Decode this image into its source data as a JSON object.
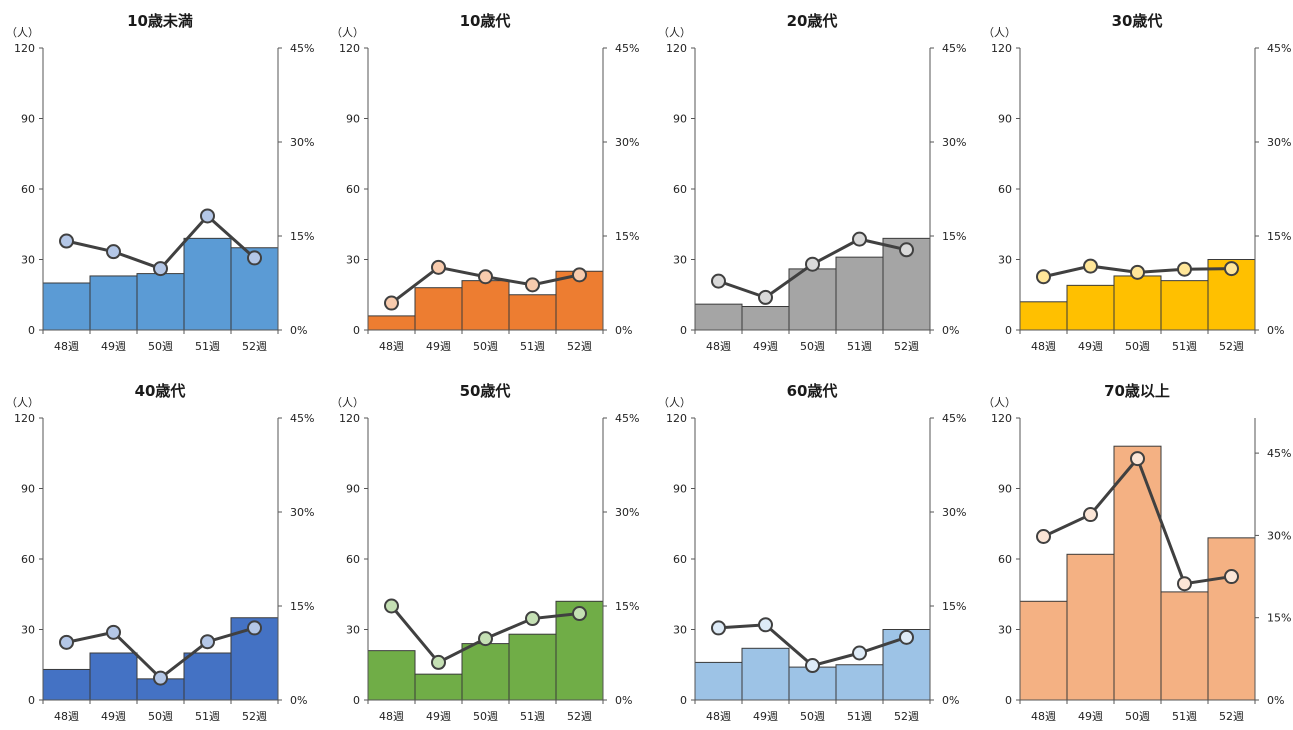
{
  "chart_data": [
    {
      "type": "bar+line",
      "title": "10歳未満",
      "unit_label": "（人）",
      "categories": [
        "48週",
        "49週",
        "50週",
        "51週",
        "52週"
      ],
      "bar_values": [
        20,
        23,
        24,
        39,
        35
      ],
      "line_values_pct": [
        14.2,
        12.5,
        9.8,
        18.2,
        11.5
      ],
      "y_left": [
        0,
        120
      ],
      "y_left_ticks": [
        "0",
        "30",
        "60",
        "90",
        "120"
      ],
      "y_right": [
        0,
        45
      ],
      "y_right_ticks": [
        "0%",
        "15%",
        "30%",
        "45%"
      ],
      "bar_color": "#5b9bd5",
      "marker_color": "#b4c7e7"
    },
    {
      "type": "bar+line",
      "title": "10歳代",
      "unit_label": "（人）",
      "categories": [
        "48週",
        "49週",
        "50週",
        "51週",
        "52週"
      ],
      "bar_values": [
        6,
        18,
        21,
        15,
        25
      ],
      "line_values_pct": [
        4.3,
        10.0,
        8.5,
        7.2,
        8.8
      ],
      "y_left": [
        0,
        120
      ],
      "y_left_ticks": [
        "0",
        "30",
        "60",
        "90",
        "120"
      ],
      "y_right": [
        0,
        45
      ],
      "y_right_ticks": [
        "0%",
        "15%",
        "30%",
        "45%"
      ],
      "bar_color": "#ed7d31",
      "marker_color": "#f8cbad"
    },
    {
      "type": "bar+line",
      "title": "20歳代",
      "unit_label": "（人）",
      "categories": [
        "48週",
        "49週",
        "50週",
        "51週",
        "52週"
      ],
      "bar_values": [
        11,
        10,
        26,
        31,
        39
      ],
      "line_values_pct": [
        7.8,
        5.2,
        10.5,
        14.5,
        12.8
      ],
      "y_left": [
        0,
        120
      ],
      "y_left_ticks": [
        "0",
        "30",
        "60",
        "90",
        "120"
      ],
      "y_right": [
        0,
        45
      ],
      "y_right_ticks": [
        "0%",
        "15%",
        "30%",
        "45%"
      ],
      "bar_color": "#a5a5a5",
      "marker_color": "#d9d9d9"
    },
    {
      "type": "bar+line",
      "title": "30歳代",
      "unit_label": "（人）",
      "categories": [
        "48週",
        "49週",
        "50週",
        "51週",
        "52週"
      ],
      "bar_values": [
        12,
        19,
        23,
        21,
        30
      ],
      "line_values_pct": [
        8.5,
        10.2,
        9.2,
        9.7,
        9.8
      ],
      "y_left": [
        0,
        120
      ],
      "y_left_ticks": [
        "0",
        "30",
        "60",
        "90",
        "120"
      ],
      "y_right": [
        0,
        45
      ],
      "y_right_ticks": [
        "0%",
        "15%",
        "30%",
        "45%"
      ],
      "bar_color": "#ffc000",
      "marker_color": "#ffe699"
    },
    {
      "type": "bar+line",
      "title": "40歳代",
      "unit_label": "（人）",
      "categories": [
        "48週",
        "49週",
        "50週",
        "51週",
        "52週"
      ],
      "bar_values": [
        13,
        20,
        9,
        20,
        35
      ],
      "line_values_pct": [
        9.2,
        10.8,
        3.5,
        9.3,
        11.5
      ],
      "y_left": [
        0,
        120
      ],
      "y_left_ticks": [
        "0",
        "30",
        "60",
        "90",
        "120"
      ],
      "y_right": [
        0,
        45
      ],
      "y_right_ticks": [
        "0%",
        "15%",
        "30%",
        "45%"
      ],
      "bar_color": "#4472c4",
      "marker_color": "#b4c7e7"
    },
    {
      "type": "bar+line",
      "title": "50歳代",
      "unit_label": "（人）",
      "categories": [
        "48週",
        "49週",
        "50週",
        "51週",
        "52週"
      ],
      "bar_values": [
        21,
        11,
        24,
        28,
        42
      ],
      "line_values_pct": [
        15.0,
        6.0,
        9.8,
        13.0,
        13.8
      ],
      "y_left": [
        0,
        120
      ],
      "y_left_ticks": [
        "0",
        "30",
        "60",
        "90",
        "120"
      ],
      "y_right": [
        0,
        45
      ],
      "y_right_ticks": [
        "0%",
        "15%",
        "30%",
        "45%"
      ],
      "bar_color": "#70ad47",
      "marker_color": "#c5e0b4"
    },
    {
      "type": "bar+line",
      "title": "60歳代",
      "unit_label": "（人）",
      "categories": [
        "48週",
        "49週",
        "50週",
        "51週",
        "52週"
      ],
      "bar_values": [
        16,
        22,
        14,
        15,
        30
      ],
      "line_values_pct": [
        11.5,
        12.0,
        5.5,
        7.5,
        10.0
      ],
      "y_left": [
        0,
        120
      ],
      "y_left_ticks": [
        "0",
        "30",
        "60",
        "90",
        "120"
      ],
      "y_right": [
        0,
        45
      ],
      "y_right_ticks": [
        "0%",
        "15%",
        "30%",
        "45%"
      ],
      "bar_color": "#9dc3e6",
      "marker_color": "#deebf7"
    },
    {
      "type": "bar+line",
      "title": "70歳以上",
      "unit_label": "（人）",
      "categories": [
        "48週",
        "49週",
        "50週",
        "51週",
        "52週"
      ],
      "bar_values": [
        42,
        62,
        108,
        46,
        69
      ],
      "line_values_pct": [
        29.8,
        33.8,
        44.0,
        21.2,
        22.5
      ],
      "y_left": [
        0,
        120
      ],
      "y_left_ticks": [
        "0",
        "30",
        "60",
        "90",
        "120"
      ],
      "y_right": [
        0,
        51.4
      ],
      "y_right_ticks": [
        "0%",
        "15%",
        "30%",
        "45%"
      ],
      "bar_color": "#f4b183",
      "marker_color": "#fbe5d6"
    }
  ]
}
